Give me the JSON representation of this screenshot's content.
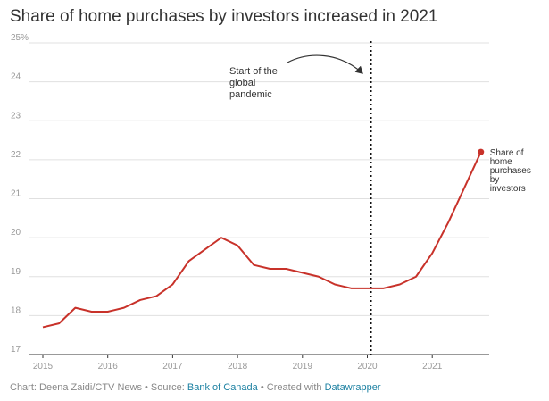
{
  "title": "Share of home purchases by investors increased in 2021",
  "footer": {
    "chart_prefix": "Chart: ",
    "chart_by": "Deena Zaidi/CTV News",
    "source_prefix": " • Source: ",
    "source_link": "Bank of Canada",
    "created_prefix": " • Created with ",
    "created_link": "Datawrapper"
  },
  "colors": {
    "line": "#c8322a",
    "grid": "#e0e0e0",
    "axis_text": "#999999",
    "link": "#1d81a2"
  },
  "chart_data": {
    "type": "line",
    "title": "Share of home purchases by investors increased in 2021",
    "ylim": [
      17,
      25
    ],
    "xlim": [
      2015,
      2022.1
    ],
    "y_ticks": [
      {
        "value": 25,
        "label": "25%"
      },
      {
        "value": 24,
        "label": "24"
      },
      {
        "value": 23,
        "label": "23"
      },
      {
        "value": 22,
        "label": "22"
      },
      {
        "value": 21,
        "label": "21"
      },
      {
        "value": 20,
        "label": "20"
      },
      {
        "value": 19,
        "label": "19"
      },
      {
        "value": 18,
        "label": "18"
      },
      {
        "value": 17,
        "label": "17"
      }
    ],
    "x_ticks": [
      {
        "value": 2015,
        "label": "2015"
      },
      {
        "value": 2016,
        "label": "2016"
      },
      {
        "value": 2017,
        "label": "2017"
      },
      {
        "value": 2018,
        "label": "2018"
      },
      {
        "value": 2019,
        "label": "2019"
      },
      {
        "value": 2020,
        "label": "2020"
      },
      {
        "value": 2021,
        "label": "2021"
      }
    ],
    "grid": true,
    "series": [
      {
        "name": "Share of home purchases by investors",
        "label_lines": [
          "Share of",
          "home",
          "purchases",
          "by",
          "investors"
        ],
        "x": [
          2015.0,
          2015.25,
          2015.5,
          2015.75,
          2016.0,
          2016.25,
          2016.5,
          2016.75,
          2017.0,
          2017.25,
          2017.5,
          2017.75,
          2018.0,
          2018.25,
          2018.5,
          2018.75,
          2019.0,
          2019.25,
          2019.5,
          2019.75,
          2020.0,
          2020.25,
          2020.5,
          2020.75,
          2021.0,
          2021.25,
          2021.5,
          2021.75
        ],
        "y": [
          17.7,
          17.8,
          18.2,
          18.1,
          18.1,
          18.2,
          18.4,
          18.5,
          18.8,
          19.4,
          19.7,
          20.0,
          19.8,
          19.3,
          19.2,
          19.2,
          19.1,
          19.0,
          18.8,
          18.7,
          18.7,
          18.7,
          18.8,
          19.0,
          19.6,
          20.4,
          21.3,
          22.2
        ]
      }
    ],
    "annotations": [
      {
        "type": "vline",
        "x": 2020.0,
        "style": "dotted"
      },
      {
        "type": "text",
        "lines": [
          "Start of the",
          "global",
          "pandemic"
        ],
        "arrow": true
      }
    ]
  }
}
